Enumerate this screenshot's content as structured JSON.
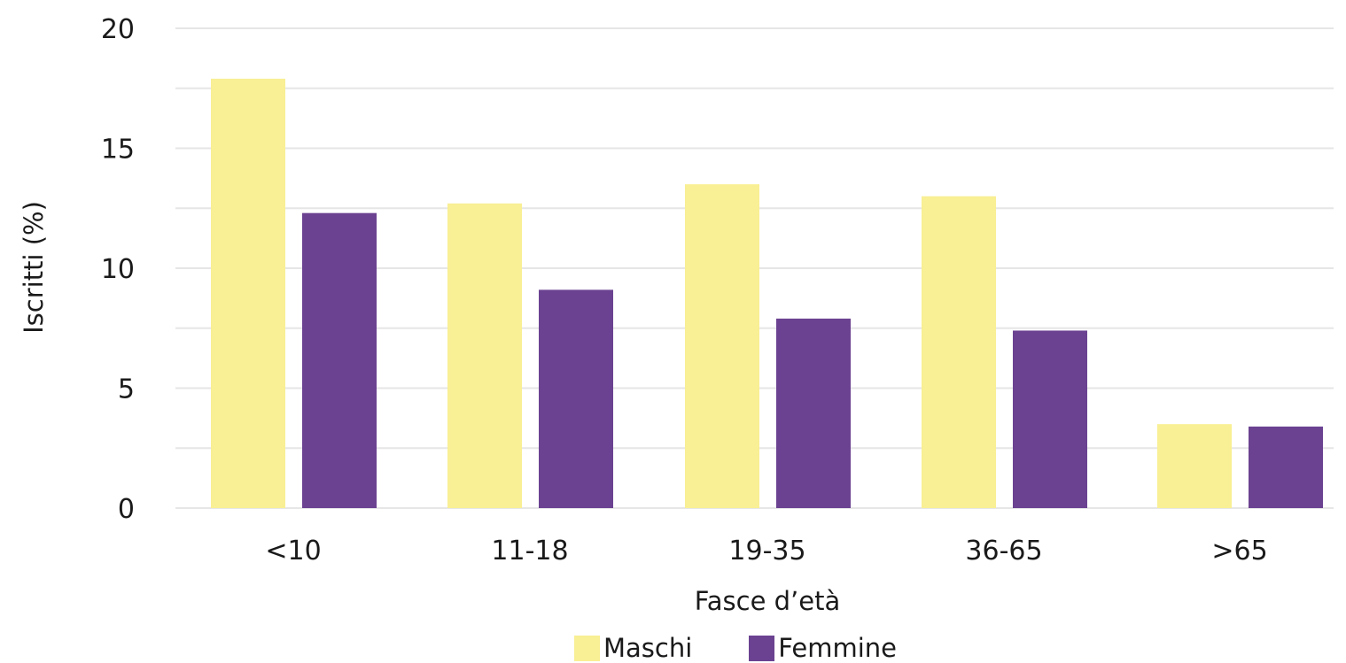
{
  "chart_data": {
    "type": "bar",
    "categories": [
      "<10",
      "11-18",
      "19-35",
      "36-65",
      ">65"
    ],
    "series": [
      {
        "name": "Maschi",
        "values": [
          17.9,
          12.7,
          13.5,
          13.0,
          3.5
        ],
        "color": "#f9ef94"
      },
      {
        "name": "Femmine",
        "values": [
          12.3,
          9.1,
          7.9,
          7.4,
          3.4
        ],
        "color": "#6b4291"
      }
    ],
    "xlabel": "Fasce d’età",
    "ylabel": "Iscritti (%)",
    "ylim": [
      0,
      20
    ],
    "yticks": [
      0,
      5,
      10,
      15,
      20
    ],
    "ytick_labels": [
      "0",
      "5",
      "10",
      "15",
      "20"
    ],
    "grid": true,
    "grid_color": "#e6e6e6",
    "legend_position": "bottom-center"
  }
}
